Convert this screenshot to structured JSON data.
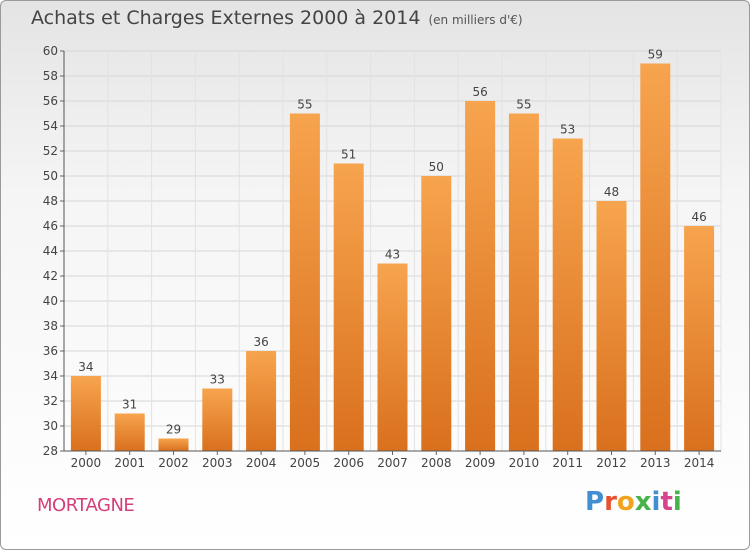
{
  "header": {
    "title": "Achats et Charges Externes 2000 à 2014",
    "subtitle": "(en milliers d'€)"
  },
  "footer": {
    "place": "MORTAGNE",
    "brand": "Proxiti"
  },
  "colors": {
    "bar_top": "#f7a44e",
    "bar_bottom": "#d9701d",
    "brand_letters": [
      "#3f8fd2",
      "#e8512f",
      "#f2a21c",
      "#47b34a",
      "#3f8fd2",
      "#d9428c",
      "#47b34a"
    ]
  },
  "chart_data": {
    "type": "bar",
    "categories": [
      "2000",
      "2001",
      "2002",
      "2003",
      "2004",
      "2005",
      "2006",
      "2007",
      "2008",
      "2009",
      "2010",
      "2011",
      "2012",
      "2013",
      "2014"
    ],
    "values": [
      34,
      31,
      29,
      33,
      36,
      55,
      51,
      43,
      50,
      56,
      55,
      53,
      48,
      59,
      46
    ],
    "ylim": [
      28,
      60
    ],
    "yticks": [
      28,
      30,
      32,
      34,
      36,
      38,
      40,
      42,
      44,
      46,
      48,
      50,
      52,
      54,
      56,
      58,
      60
    ],
    "title": "Achats et Charges Externes 2000 à 2014",
    "xlabel": "",
    "ylabel": "",
    "grid": true,
    "data_labels": true
  }
}
